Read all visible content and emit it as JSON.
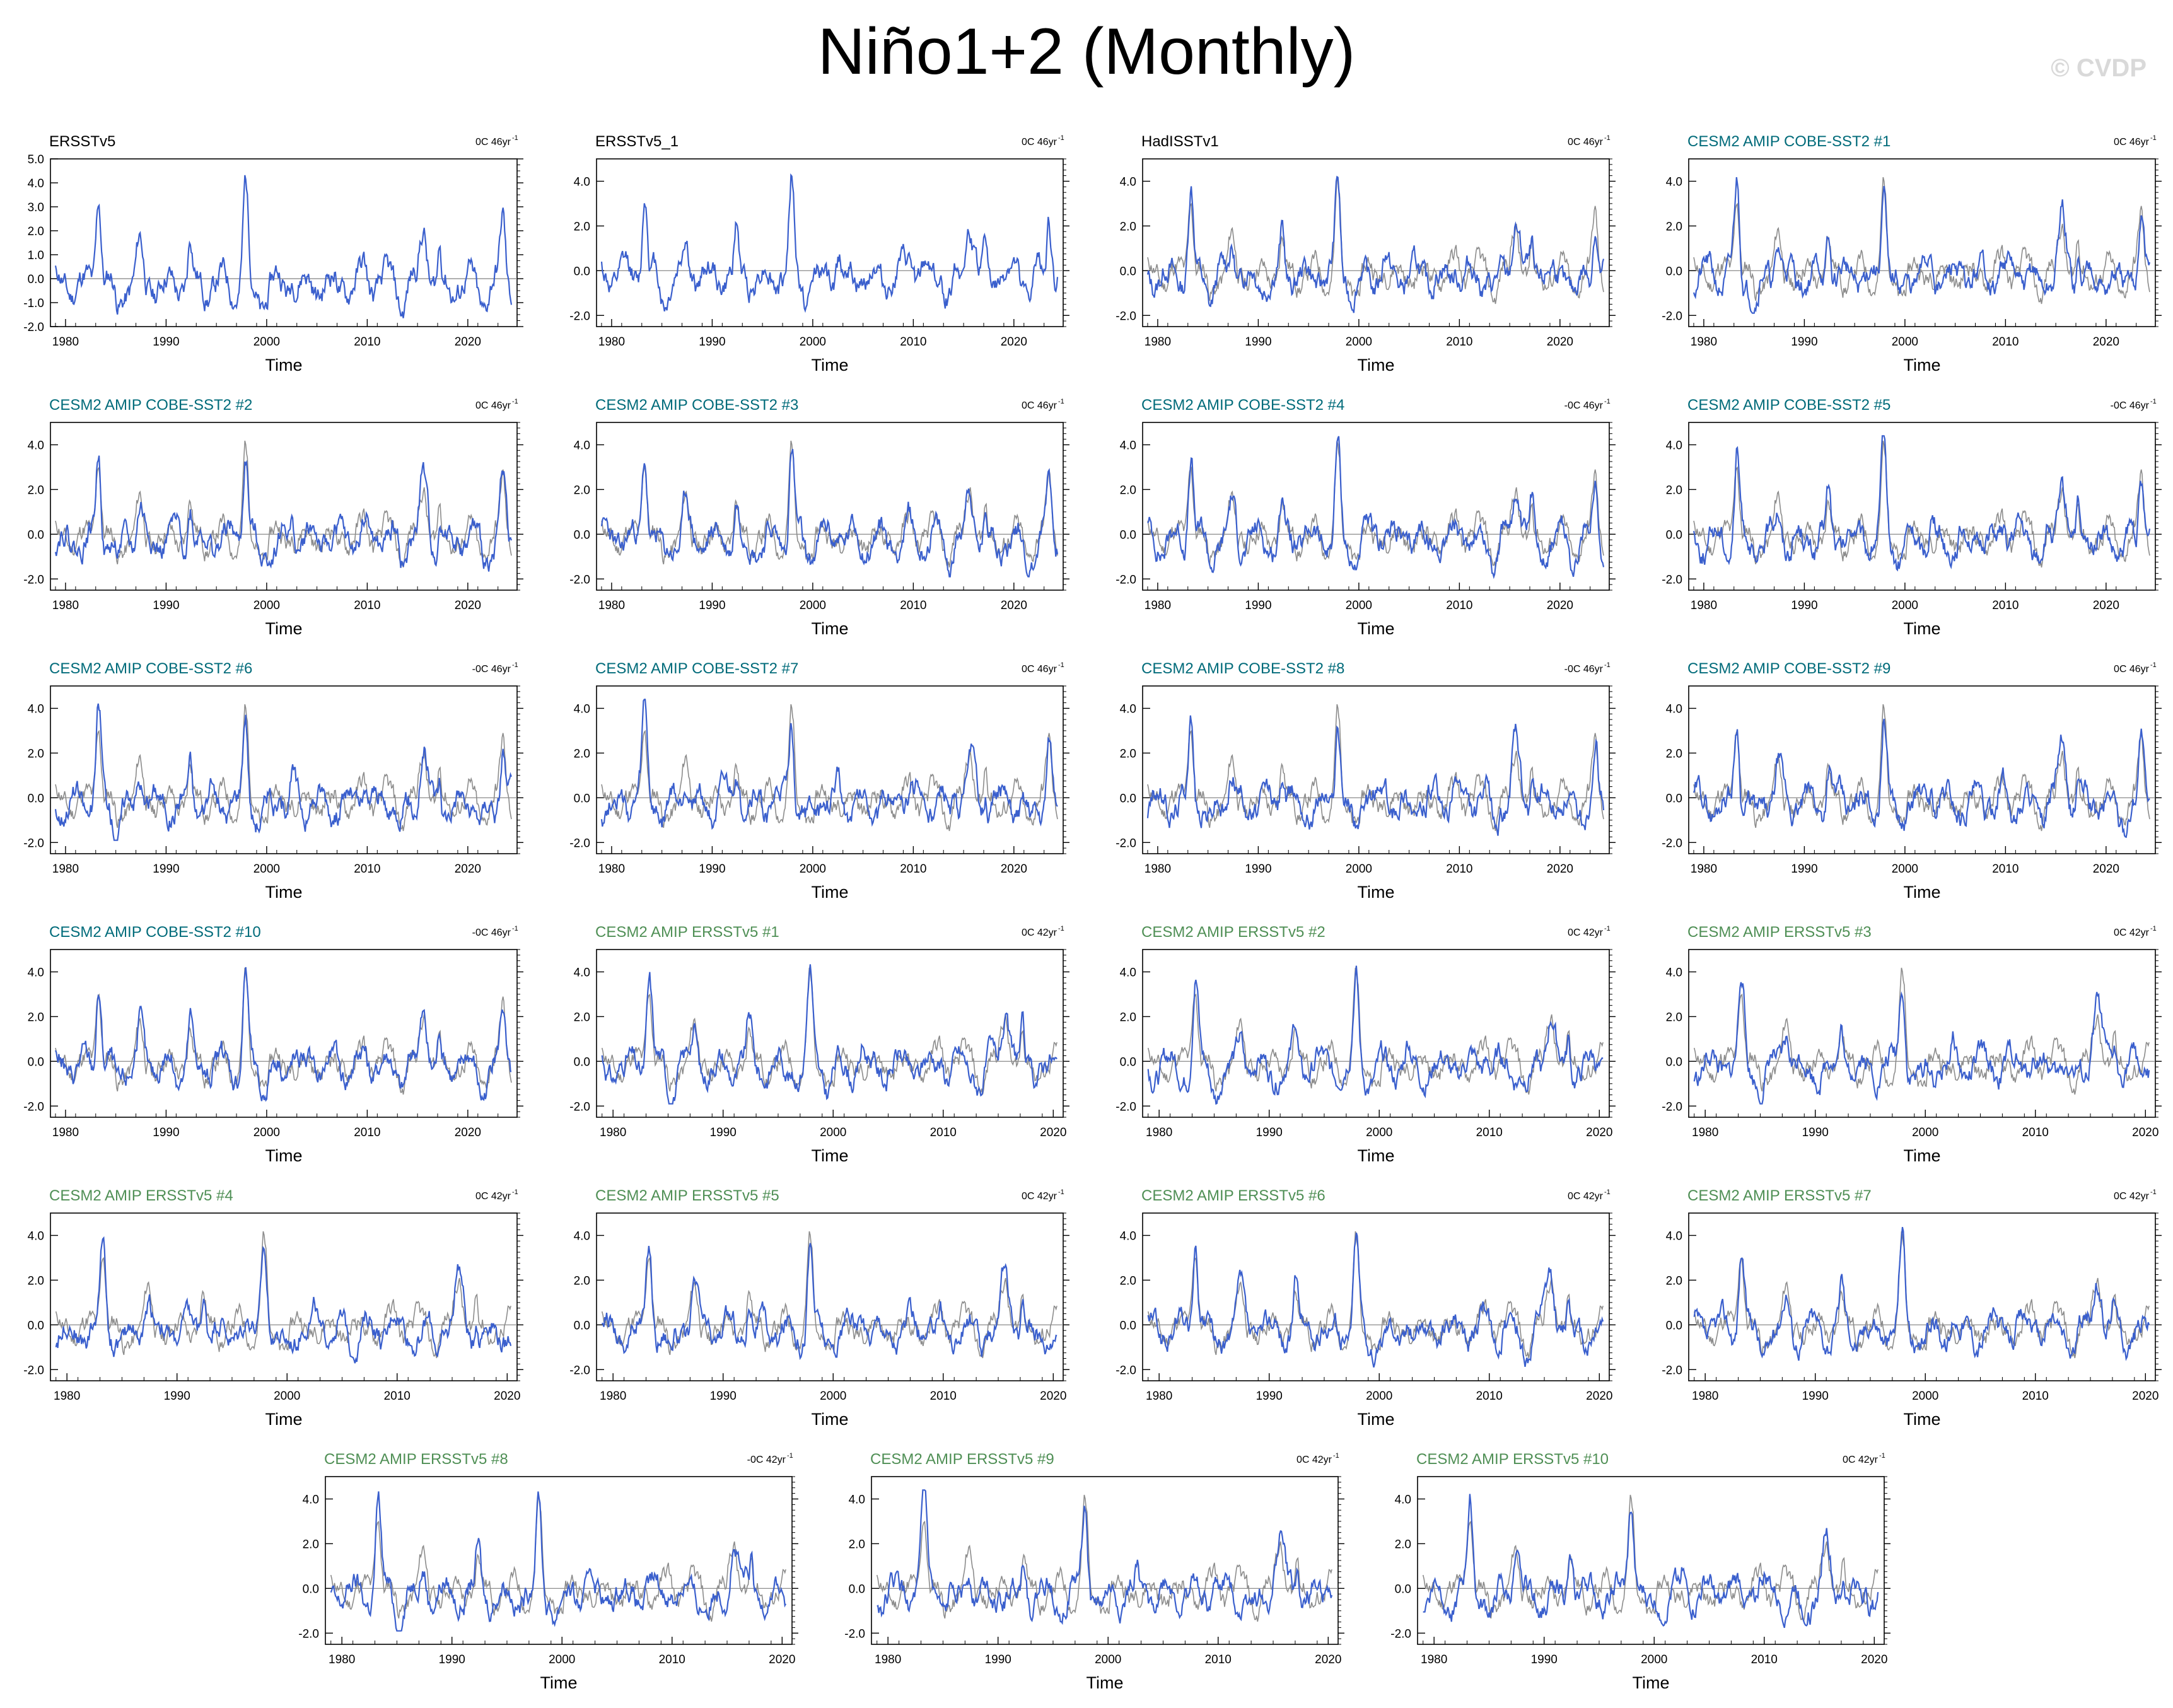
{
  "title": "Niño1+2 (Monthly)",
  "watermark": "© CVDP",
  "colors": {
    "obs_title": "#000000",
    "cobe_title": "#006b7a",
    "ersst_title": "#4f8f55",
    "main_line": "#3a5fcd",
    "obs_line": "#8c8c8c",
    "zero_line": "#7f7f7f"
  },
  "chart_data": [
    {
      "type": "line",
      "title": "ERSSTv5",
      "title_style": "obs",
      "trend": "0C 46yr",
      "trend_exp": "-1",
      "xlabel": "Time",
      "xlim": [
        1978.5,
        2024.9
      ],
      "ylim": [
        -2.0,
        5.0
      ],
      "yticks": [
        "-2.0",
        "-1.0",
        "0.0",
        "1.0",
        "2.0",
        "3.0",
        "4.0",
        "5.0"
      ],
      "xticks": [
        "1980",
        "1990",
        "2000",
        "2010",
        "2020"
      ],
      "overlay": false,
      "seed": 11
    },
    {
      "type": "line",
      "title": "ERSSTv5_1",
      "title_style": "obs",
      "trend": "0C 46yr",
      "trend_exp": "-1",
      "xlabel": "Time",
      "xlim": [
        1978.5,
        2024.9
      ],
      "ylim": [
        -2.5,
        5.0
      ],
      "yticks": [
        "-2.0",
        "0.0",
        "2.0",
        "4.0"
      ],
      "xticks": [
        "1980",
        "1990",
        "2000",
        "2010",
        "2020"
      ],
      "overlay": false,
      "seed": 12
    },
    {
      "type": "line",
      "title": "HadISSTv1",
      "title_style": "obs",
      "trend": "0C 46yr",
      "trend_exp": "-1",
      "xlabel": "Time",
      "xlim": [
        1978.5,
        2024.9
      ],
      "ylim": [
        -2.5,
        5.0
      ],
      "yticks": [
        "-2.0",
        "0.0",
        "2.0",
        "4.0"
      ],
      "xticks": [
        "1980",
        "1990",
        "2000",
        "2010",
        "2020"
      ],
      "overlay": true,
      "seed": 13
    },
    {
      "type": "line",
      "title": "CESM2 AMIP COBE-SST2 #1",
      "title_style": "cobe",
      "trend": "0C 46yr",
      "trend_exp": "-1",
      "xlabel": "Time",
      "xlim": [
        1978.5,
        2024.9
      ],
      "ylim": [
        -2.5,
        5.0
      ],
      "yticks": [
        "-2.0",
        "0.0",
        "2.0",
        "4.0"
      ],
      "xticks": [
        "1980",
        "1990",
        "2000",
        "2010",
        "2020"
      ],
      "overlay": true,
      "seed": 21
    },
    {
      "type": "line",
      "title": "CESM2 AMIP COBE-SST2 #2",
      "title_style": "cobe",
      "trend": "0C 46yr",
      "trend_exp": "-1",
      "xlabel": "Time",
      "xlim": [
        1978.5,
        2024.9
      ],
      "ylim": [
        -2.5,
        5.0
      ],
      "yticks": [
        "-2.0",
        "0.0",
        "2.0",
        "4.0"
      ],
      "xticks": [
        "1980",
        "1990",
        "2000",
        "2010",
        "2020"
      ],
      "overlay": true,
      "seed": 22
    },
    {
      "type": "line",
      "title": "CESM2 AMIP COBE-SST2 #3",
      "title_style": "cobe",
      "trend": "0C 46yr",
      "trend_exp": "-1",
      "xlabel": "Time",
      "xlim": [
        1978.5,
        2024.9
      ],
      "ylim": [
        -2.5,
        5.0
      ],
      "yticks": [
        "-2.0",
        "0.0",
        "2.0",
        "4.0"
      ],
      "xticks": [
        "1980",
        "1990",
        "2000",
        "2010",
        "2020"
      ],
      "overlay": true,
      "seed": 23
    },
    {
      "type": "line",
      "title": "CESM2 AMIP COBE-SST2 #4",
      "title_style": "cobe",
      "trend": "-0C 46yr",
      "trend_exp": "-1",
      "xlabel": "Time",
      "xlim": [
        1978.5,
        2024.9
      ],
      "ylim": [
        -2.5,
        5.0
      ],
      "yticks": [
        "-2.0",
        "0.0",
        "2.0",
        "4.0"
      ],
      "xticks": [
        "1980",
        "1990",
        "2000",
        "2010",
        "2020"
      ],
      "overlay": true,
      "seed": 24
    },
    {
      "type": "line",
      "title": "CESM2 AMIP COBE-SST2 #5",
      "title_style": "cobe",
      "trend": "-0C 46yr",
      "trend_exp": "-1",
      "xlabel": "Time",
      "xlim": [
        1978.5,
        2024.9
      ],
      "ylim": [
        -2.5,
        5.0
      ],
      "yticks": [
        "-2.0",
        "0.0",
        "2.0",
        "4.0"
      ],
      "xticks": [
        "1980",
        "1990",
        "2000",
        "2010",
        "2020"
      ],
      "overlay": true,
      "seed": 25
    },
    {
      "type": "line",
      "title": "CESM2 AMIP COBE-SST2 #6",
      "title_style": "cobe",
      "trend": "-0C 46yr",
      "trend_exp": "-1",
      "xlabel": "Time",
      "xlim": [
        1978.5,
        2024.9
      ],
      "ylim": [
        -2.5,
        5.0
      ],
      "yticks": [
        "-2.0",
        "0.0",
        "2.0",
        "4.0"
      ],
      "xticks": [
        "1980",
        "1990",
        "2000",
        "2010",
        "2020"
      ],
      "overlay": true,
      "seed": 26
    },
    {
      "type": "line",
      "title": "CESM2 AMIP COBE-SST2 #7",
      "title_style": "cobe",
      "trend": "0C 46yr",
      "trend_exp": "-1",
      "xlabel": "Time",
      "xlim": [
        1978.5,
        2024.9
      ],
      "ylim": [
        -2.5,
        5.0
      ],
      "yticks": [
        "-2.0",
        "0.0",
        "2.0",
        "4.0"
      ],
      "xticks": [
        "1980",
        "1990",
        "2000",
        "2010",
        "2020"
      ],
      "overlay": true,
      "seed": 27
    },
    {
      "type": "line",
      "title": "CESM2 AMIP COBE-SST2 #8",
      "title_style": "cobe",
      "trend": "-0C 46yr",
      "trend_exp": "-1",
      "xlabel": "Time",
      "xlim": [
        1978.5,
        2024.9
      ],
      "ylim": [
        -2.5,
        5.0
      ],
      "yticks": [
        "-2.0",
        "0.0",
        "2.0",
        "4.0"
      ],
      "xticks": [
        "1980",
        "1990",
        "2000",
        "2010",
        "2020"
      ],
      "overlay": true,
      "seed": 28
    },
    {
      "type": "line",
      "title": "CESM2 AMIP COBE-SST2 #9",
      "title_style": "cobe",
      "trend": "0C 46yr",
      "trend_exp": "-1",
      "xlabel": "Time",
      "xlim": [
        1978.5,
        2024.9
      ],
      "ylim": [
        -2.5,
        5.0
      ],
      "yticks": [
        "-2.0",
        "0.0",
        "2.0",
        "4.0"
      ],
      "xticks": [
        "1980",
        "1990",
        "2000",
        "2010",
        "2020"
      ],
      "overlay": true,
      "seed": 29
    },
    {
      "type": "line",
      "title": "CESM2 AMIP COBE-SST2 #10",
      "title_style": "cobe",
      "trend": "-0C 46yr",
      "trend_exp": "-1",
      "xlabel": "Time",
      "xlim": [
        1978.5,
        2024.9
      ],
      "ylim": [
        -2.5,
        5.0
      ],
      "yticks": [
        "-2.0",
        "0.0",
        "2.0",
        "4.0"
      ],
      "xticks": [
        "1980",
        "1990",
        "2000",
        "2010",
        "2020"
      ],
      "overlay": true,
      "seed": 30
    },
    {
      "type": "line",
      "title": "CESM2 AMIP ERSSTv5 #1",
      "title_style": "ersst",
      "trend": "0C 42yr",
      "trend_exp": "-1",
      "xlabel": "Time",
      "xlim": [
        1978.5,
        2020.9
      ],
      "ylim": [
        -2.5,
        5.0
      ],
      "yticks": [
        "-2.0",
        "0.0",
        "2.0",
        "4.0"
      ],
      "xticks": [
        "1980",
        "1990",
        "2000",
        "2010",
        "2020"
      ],
      "overlay": true,
      "seed": 31
    },
    {
      "type": "line",
      "title": "CESM2 AMIP ERSSTv5 #2",
      "title_style": "ersst",
      "trend": "0C 42yr",
      "trend_exp": "-1",
      "xlabel": "Time",
      "xlim": [
        1978.5,
        2020.9
      ],
      "ylim": [
        -2.5,
        5.0
      ],
      "yticks": [
        "-2.0",
        "0.0",
        "2.0",
        "4.0"
      ],
      "xticks": [
        "1980",
        "1990",
        "2000",
        "2010",
        "2020"
      ],
      "overlay": true,
      "seed": 32
    },
    {
      "type": "line",
      "title": "CESM2 AMIP ERSSTv5 #3",
      "title_style": "ersst",
      "trend": "0C 42yr",
      "trend_exp": "-1",
      "xlabel": "Time",
      "xlim": [
        1978.5,
        2020.9
      ],
      "ylim": [
        -2.5,
        5.0
      ],
      "yticks": [
        "-2.0",
        "0.0",
        "2.0",
        "4.0"
      ],
      "xticks": [
        "1980",
        "1990",
        "2000",
        "2010",
        "2020"
      ],
      "overlay": true,
      "seed": 33
    },
    {
      "type": "line",
      "title": "CESM2 AMIP ERSSTv5 #4",
      "title_style": "ersst",
      "trend": "0C 42yr",
      "trend_exp": "-1",
      "xlabel": "Time",
      "xlim": [
        1978.5,
        2020.9
      ],
      "ylim": [
        -2.5,
        5.0
      ],
      "yticks": [
        "-2.0",
        "0.0",
        "2.0",
        "4.0"
      ],
      "xticks": [
        "1980",
        "1990",
        "2000",
        "2010",
        "2020"
      ],
      "overlay": true,
      "seed": 34
    },
    {
      "type": "line",
      "title": "CESM2 AMIP ERSSTv5 #5",
      "title_style": "ersst",
      "trend": "0C 42yr",
      "trend_exp": "-1",
      "xlabel": "Time",
      "xlim": [
        1978.5,
        2020.9
      ],
      "ylim": [
        -2.5,
        5.0
      ],
      "yticks": [
        "-2.0",
        "0.0",
        "2.0",
        "4.0"
      ],
      "xticks": [
        "1980",
        "1990",
        "2000",
        "2010",
        "2020"
      ],
      "overlay": true,
      "seed": 35
    },
    {
      "type": "line",
      "title": "CESM2 AMIP ERSSTv5 #6",
      "title_style": "ersst",
      "trend": "0C 42yr",
      "trend_exp": "-1",
      "xlabel": "Time",
      "xlim": [
        1978.5,
        2020.9
      ],
      "ylim": [
        -2.5,
        5.0
      ],
      "yticks": [
        "-2.0",
        "0.0",
        "2.0",
        "4.0"
      ],
      "xticks": [
        "1980",
        "1990",
        "2000",
        "2010",
        "2020"
      ],
      "overlay": true,
      "seed": 36
    },
    {
      "type": "line",
      "title": "CESM2 AMIP ERSSTv5 #7",
      "title_style": "ersst",
      "trend": "0C 42yr",
      "trend_exp": "-1",
      "xlabel": "Time",
      "xlim": [
        1978.5,
        2020.9
      ],
      "ylim": [
        -2.5,
        5.0
      ],
      "yticks": [
        "-2.0",
        "0.0",
        "2.0",
        "4.0"
      ],
      "xticks": [
        "1980",
        "1990",
        "2000",
        "2010",
        "2020"
      ],
      "overlay": true,
      "seed": 37
    },
    {
      "type": "line",
      "title": "CESM2 AMIP ERSSTv5 #8",
      "title_style": "ersst",
      "trend": "-0C 42yr",
      "trend_exp": "-1",
      "xlabel": "Time",
      "xlim": [
        1978.5,
        2020.9
      ],
      "ylim": [
        -2.5,
        5.0
      ],
      "yticks": [
        "-2.0",
        "0.0",
        "2.0",
        "4.0"
      ],
      "xticks": [
        "1980",
        "1990",
        "2000",
        "2010",
        "2020"
      ],
      "overlay": true,
      "seed": 38
    },
    {
      "type": "line",
      "title": "CESM2 AMIP ERSSTv5 #9",
      "title_style": "ersst",
      "trend": "0C 42yr",
      "trend_exp": "-1",
      "xlabel": "Time",
      "xlim": [
        1978.5,
        2020.9
      ],
      "ylim": [
        -2.5,
        5.0
      ],
      "yticks": [
        "-2.0",
        "0.0",
        "2.0",
        "4.0"
      ],
      "xticks": [
        "1980",
        "1990",
        "2000",
        "2010",
        "2020"
      ],
      "overlay": true,
      "seed": 39
    },
    {
      "type": "line",
      "title": "CESM2 AMIP ERSSTv5 #10",
      "title_style": "ersst",
      "trend": "0C 42yr",
      "trend_exp": "-1",
      "xlabel": "Time",
      "xlim": [
        1978.5,
        2020.9
      ],
      "ylim": [
        -2.5,
        5.0
      ],
      "yticks": [
        "-2.0",
        "0.0",
        "2.0",
        "4.0"
      ],
      "xticks": [
        "1980",
        "1990",
        "2000",
        "2010",
        "2020"
      ],
      "overlay": true,
      "seed": 40
    }
  ]
}
